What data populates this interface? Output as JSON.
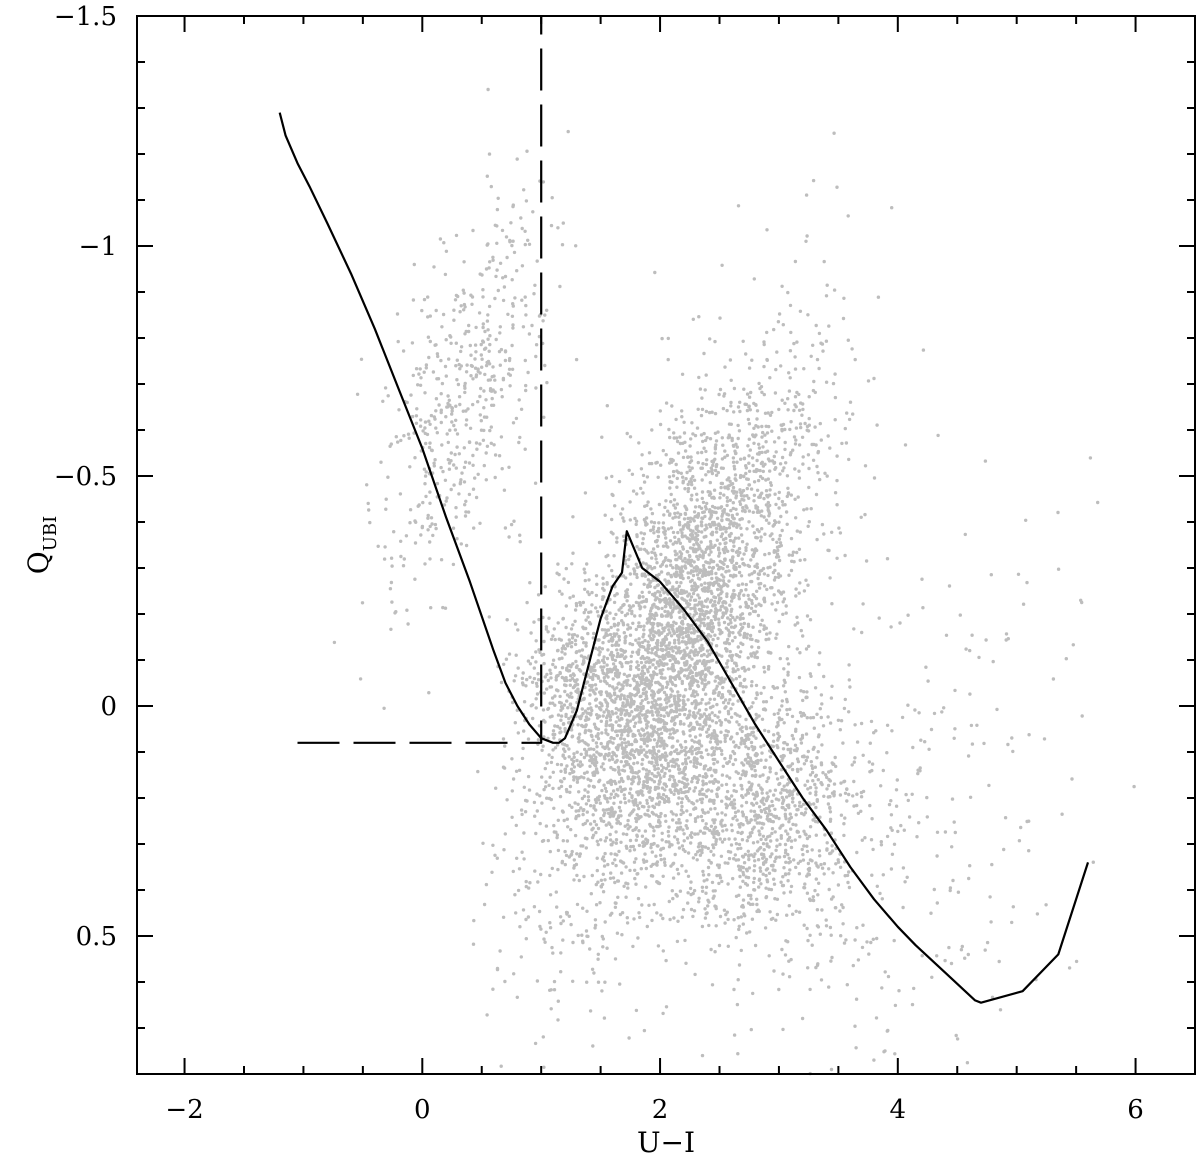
{
  "chart_data": {
    "type": "scatter",
    "title": "",
    "xlabel": "U−I",
    "ylabel": "Q",
    "ylabel_sub": "UBI",
    "xlim": [
      -2.4,
      6.5
    ],
    "ylim": [
      0.8,
      -1.5
    ],
    "y_inverted": true,
    "grid": false,
    "legend": "none",
    "x_ticks_major": [
      {
        "value": -2,
        "label": "−2"
      },
      {
        "value": 0,
        "label": "0"
      },
      {
        "value": 2,
        "label": "2"
      },
      {
        "value": 4,
        "label": "4"
      },
      {
        "value": 6,
        "label": "6"
      }
    ],
    "x_ticks_minor": [
      -1.5,
      -1,
      -0.5,
      0.5,
      1,
      1.5,
      2.5,
      3,
      3.5,
      4.5,
      5,
      5.5
    ],
    "y_ticks_major": [
      {
        "value": -1.5,
        "label": "−1.5"
      },
      {
        "value": -1,
        "label": "−1"
      },
      {
        "value": -0.5,
        "label": "−0.5"
      },
      {
        "value": 0,
        "label": "0"
      },
      {
        "value": 0.5,
        "label": "0.5"
      }
    ],
    "y_ticks_minor": [
      -1.4,
      -1.3,
      -1.2,
      -1.1,
      -0.9,
      -0.8,
      -0.7,
      -0.6,
      -0.4,
      -0.3,
      -0.2,
      -0.1,
      0.1,
      0.2,
      0.3,
      0.4,
      0.6,
      0.7
    ],
    "point_color": "#bdbdbd",
    "scatter_density_model": {
      "note_count": 6500,
      "components": [
        {
          "weight": 0.62,
          "mean": [
            2.15,
            -0.12
          ],
          "sx": 0.55,
          "sy": 0.22,
          "slope": -0.34
        },
        {
          "weight": 0.18,
          "mean": [
            2.8,
            0.22
          ],
          "sx": 0.45,
          "sy": 0.14,
          "slope": 0.0
        },
        {
          "weight": 0.08,
          "mean": [
            0.35,
            -0.68
          ],
          "sx": 0.35,
          "sy": 0.18,
          "slope": -0.4
        },
        {
          "weight": 0.07,
          "mean": [
            1.3,
            -0.05
          ],
          "sx": 0.25,
          "sy": 0.12,
          "slope": 0.0
        },
        {
          "weight": 0.05,
          "mean": [
            3.8,
            0.3
          ],
          "sx": 0.9,
          "sy": 0.3,
          "slope": -0.1
        }
      ]
    },
    "series": [
      {
        "style": "solid",
        "color": "#000000",
        "x": [
          -1.2,
          -1.15,
          -1.05,
          -0.95,
          -0.8,
          -0.6,
          -0.4,
          -0.2,
          0.0,
          0.2,
          0.4,
          0.6,
          0.7,
          0.8,
          0.9,
          1.0,
          1.1,
          1.15,
          1.2,
          1.3,
          1.4,
          1.5,
          1.6,
          1.68,
          1.72,
          1.85,
          2.0,
          2.2,
          2.4,
          2.6,
          2.8,
          3.0,
          3.2,
          3.4,
          3.6,
          3.8,
          4.0,
          4.15,
          4.4,
          4.65,
          4.7,
          5.05,
          5.35,
          5.6
        ],
        "y": [
          -1.29,
          -1.24,
          -1.18,
          -1.13,
          -1.05,
          -0.94,
          -0.82,
          -0.69,
          -0.56,
          -0.41,
          -0.27,
          -0.12,
          -0.05,
          0.0,
          0.04,
          0.07,
          0.08,
          0.08,
          0.07,
          0.01,
          -0.09,
          -0.19,
          -0.26,
          -0.29,
          -0.38,
          -0.3,
          -0.27,
          -0.21,
          -0.14,
          -0.05,
          0.04,
          0.12,
          0.2,
          0.27,
          0.35,
          0.42,
          0.48,
          0.52,
          0.58,
          0.64,
          0.645,
          0.62,
          0.54,
          0.34
        ]
      },
      {
        "style": "dashed",
        "color": "#000000",
        "x": [
          -1.05,
          1.0,
          1.0
        ],
        "y": [
          0.08,
          0.08,
          -1.5
        ]
      }
    ]
  }
}
